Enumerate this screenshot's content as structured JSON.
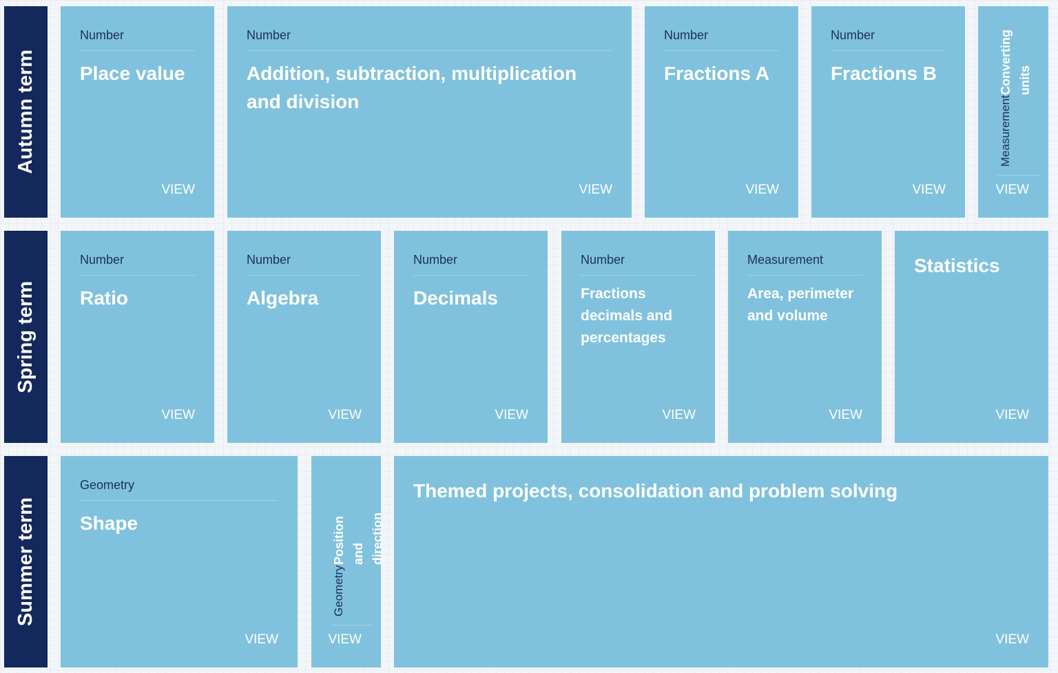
{
  "terms": [
    {
      "label": "Autumn term",
      "blocks": [
        {
          "category": "Number",
          "title": "Place value",
          "action": "VIEW"
        },
        {
          "category": "Number",
          "title": "Addition, subtraction, multiplication and division",
          "action": "VIEW"
        },
        {
          "category": "Number",
          "title": "Fractions A",
          "action": "VIEW"
        },
        {
          "category": "Number",
          "title": "Fractions B",
          "action": "VIEW"
        },
        {
          "category": "Measurement",
          "title": "Converting units",
          "action": "VIEW"
        }
      ]
    },
    {
      "label": "Spring term",
      "blocks": [
        {
          "category": "Number",
          "title": "Ratio",
          "action": "VIEW"
        },
        {
          "category": "Number",
          "title": "Algebra",
          "action": "VIEW"
        },
        {
          "category": "Number",
          "title": "Decimals",
          "action": "VIEW"
        },
        {
          "category": "Number",
          "title": "Fractions decimals and percentages",
          "action": "VIEW"
        },
        {
          "category": "Measurement",
          "title": "Area, perimeter and volume",
          "action": "VIEW"
        },
        {
          "title": "Statistics",
          "action": "VIEW"
        }
      ]
    },
    {
      "label": "Summer term",
      "blocks": [
        {
          "category": "Geometry",
          "title": "Shape",
          "action": "VIEW"
        },
        {
          "category": "Geometry",
          "title": "Position and direction",
          "action": "VIEW"
        },
        {
          "title": "Themed projects, consolidation and problem solving",
          "action": "VIEW"
        }
      ]
    }
  ]
}
